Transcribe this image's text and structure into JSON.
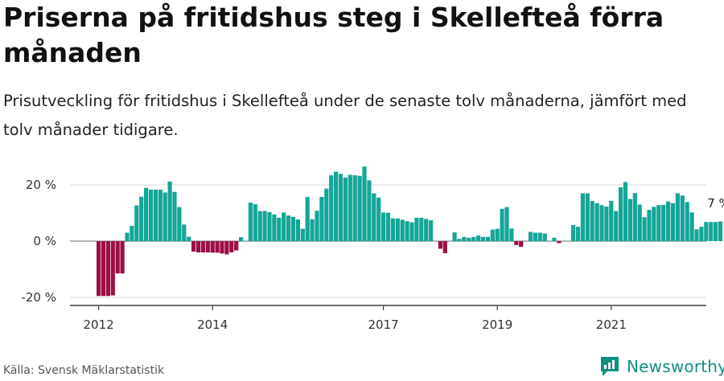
{
  "header": {
    "title": "Priserna på fritidshus steg i Skellefteå förra månaden",
    "subtitle": "Prisutveckling för fritidshus i Skellefteå under de senaste tolv månaderna, jämfört med tolv månader tidigare."
  },
  "footer": {
    "source": "Källa: Svensk Mäklarstatistik",
    "brand": "Newsworthy"
  },
  "colors": {
    "positive": "#14a697",
    "negative": "#9c0f47",
    "brand": "#0e8f80"
  },
  "chart_data": {
    "type": "bar",
    "title": "Priserna på fritidshus steg i Skellefteå förra månaden",
    "subtitle": "Prisutveckling för fritidshus i Skellefteå under de senaste tolv månaderna, jämfört med tolv månader tidigare.",
    "start": "2012-01",
    "frequency": "monthly",
    "unit": "%",
    "ylim": [
      -22,
      28
    ],
    "yticks": [
      {
        "value": 20,
        "label": "20 %"
      },
      {
        "value": 0,
        "label": "0 %"
      },
      {
        "value": -20,
        "label": "-20 %"
      }
    ],
    "xticks": [
      {
        "value": "2012-01",
        "label": "2012"
      },
      {
        "value": "2014-01",
        "label": "2014"
      },
      {
        "value": "2017-01",
        "label": "2017"
      },
      {
        "value": "2019-01",
        "label": "2019"
      },
      {
        "value": "2021-01",
        "label": "2021"
      }
    ],
    "annotation": {
      "label": "7 %",
      "at": "last"
    },
    "grid": true,
    "values": [
      -19.5,
      -19.5,
      -19.5,
      -19.3,
      -11.5,
      -11.5,
      3.0,
      5.4,
      12.7,
      15.8,
      18.9,
      18.3,
      18.3,
      18.3,
      17.3,
      21.2,
      17.5,
      12.1,
      5.9,
      1.6,
      -3.7,
      -4.0,
      -4.0,
      -4.0,
      -4.1,
      -4.1,
      -4.4,
      -4.7,
      -4.0,
      -3.3,
      1.4,
      0,
      13.7,
      13.1,
      10.7,
      10.7,
      10.3,
      9.5,
      8.3,
      10.2,
      9.1,
      8.6,
      7.7,
      4.4,
      15.7,
      7.8,
      10.8,
      15.7,
      18.7,
      23.4,
      24.7,
      23.9,
      22.6,
      23.6,
      23.4,
      23.2,
      26.5,
      21.6,
      17.0,
      15.5,
      10.2,
      10.1,
      8.1,
      8.1,
      7.6,
      7.1,
      6.7,
      8.3,
      8.3,
      7.9,
      7.4,
      0,
      -2.7,
      -4.3,
      0,
      3.1,
      0.8,
      1.5,
      1.2,
      1.5,
      2.0,
      1.5,
      1.5,
      4.1,
      4.4,
      11.5,
      12.1,
      4.5,
      -1.4,
      -2.0,
      0,
      3.3,
      3.0,
      3.0,
      2.7,
      0,
      1.2,
      -0.7,
      0,
      0,
      5.7,
      5.1,
      17.0,
      17.0,
      14.3,
      13.5,
      12.8,
      12.3,
      14.3,
      10.7,
      19.1,
      21.0,
      15.0,
      17.1,
      13.0,
      8.5,
      11.1,
      12.2,
      12.8,
      12.9,
      14.1,
      13.5,
      17.0,
      16.2,
      13.9,
      10.2,
      4.2,
      5.1,
      6.8,
      6.8,
      6.8,
      7.0
    ]
  }
}
